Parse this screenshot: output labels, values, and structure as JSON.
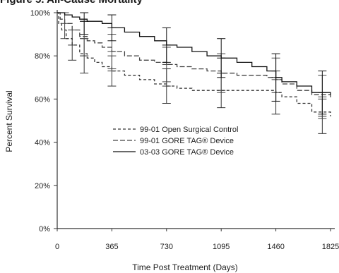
{
  "figure_title": "Figure 5. All-Cause Mortality",
  "chart_data": {
    "type": "line",
    "title": "",
    "xlabel": "Time Post Treatment (Days)",
    "ylabel": "Percent Survival",
    "xlim": [
      0,
      1825
    ],
    "ylim": [
      0,
      100
    ],
    "x_ticks": [
      0,
      365,
      730,
      1095,
      1460,
      1825
    ],
    "x_tick_labels": [
      "0",
      "365",
      "730",
      "1095",
      "1460",
      "1825"
    ],
    "y_ticks": [
      0,
      20,
      40,
      60,
      80,
      100
    ],
    "y_tick_labels": [
      "0%",
      "20%",
      "40%",
      "60%",
      "80%",
      "100%"
    ],
    "grid": false,
    "legend_position": "center",
    "series": [
      {
        "name": "99-01 Open Surgical Control",
        "style": "dashed",
        "color": "#333333",
        "x": [
          0,
          10,
          30,
          60,
          100,
          150,
          200,
          250,
          300,
          365,
          450,
          550,
          650,
          730,
          800,
          900,
          1000,
          1095,
          1200,
          1300,
          1400,
          1460,
          1500,
          1600,
          1700,
          1825
        ],
        "y": [
          100,
          95,
          92,
          88,
          85,
          81,
          79,
          77,
          75,
          73,
          71,
          69,
          67,
          66,
          65,
          64,
          64,
          64,
          64,
          64,
          64,
          63,
          61,
          58,
          54,
          52
        ],
        "error_bars": [
          {
            "x": 100,
            "y": 85,
            "low": 78,
            "high": 92
          },
          {
            "x": 180,
            "y": 80,
            "low": 72,
            "high": 88
          },
          {
            "x": 365,
            "y": 73,
            "low": 66,
            "high": 80
          },
          {
            "x": 730,
            "y": 66,
            "low": 58,
            "high": 74
          },
          {
            "x": 1095,
            "y": 64,
            "low": 56,
            "high": 72
          },
          {
            "x": 1460,
            "y": 63,
            "low": 53,
            "high": 73
          },
          {
            "x": 1770,
            "y": 52,
            "low": 44,
            "high": 60
          }
        ]
      },
      {
        "name": "99-01 GORE TAG® Device",
        "style": "dashed-long",
        "color": "#444444",
        "x": [
          0,
          20,
          50,
          100,
          150,
          200,
          250,
          300,
          365,
          450,
          550,
          650,
          730,
          800,
          900,
          1000,
          1095,
          1200,
          1300,
          1400,
          1460,
          1500,
          1600,
          1700,
          1825
        ],
        "y": [
          100,
          97,
          95,
          92,
          89,
          87,
          86,
          84,
          82,
          80,
          78,
          77,
          76,
          75,
          74,
          73,
          72,
          71,
          71,
          70,
          69,
          67,
          64,
          62,
          60
        ],
        "error_bars": [
          {
            "x": 50,
            "y": 95,
            "low": 88,
            "high": 100
          },
          {
            "x": 180,
            "y": 88,
            "low": 80,
            "high": 96
          },
          {
            "x": 365,
            "y": 82,
            "low": 74,
            "high": 90
          },
          {
            "x": 730,
            "y": 76,
            "low": 68,
            "high": 84
          },
          {
            "x": 1095,
            "y": 72,
            "low": 63,
            "high": 81
          },
          {
            "x": 1460,
            "y": 69,
            "low": 59,
            "high": 79
          },
          {
            "x": 1770,
            "y": 61,
            "low": 51,
            "high": 71
          }
        ]
      },
      {
        "name": "03-03 GORE TAG® Device",
        "style": "solid",
        "color": "#111111",
        "x": [
          0,
          50,
          100,
          150,
          200,
          250,
          300,
          365,
          450,
          550,
          650,
          730,
          800,
          900,
          1000,
          1095,
          1200,
          1300,
          1400,
          1460,
          1500,
          1600,
          1700,
          1825
        ],
        "y": [
          100,
          99,
          98,
          97,
          96,
          96,
          95,
          93,
          91,
          89,
          87,
          85,
          84,
          82,
          80,
          79,
          77,
          75,
          73,
          70,
          68,
          66,
          63,
          62
        ],
        "error_bars": [
          {
            "x": 180,
            "y": 96,
            "low": 90,
            "high": 100
          },
          {
            "x": 365,
            "y": 93,
            "low": 87,
            "high": 99
          },
          {
            "x": 730,
            "y": 85,
            "low": 77,
            "high": 93
          },
          {
            "x": 1095,
            "y": 79,
            "low": 70,
            "high": 88
          },
          {
            "x": 1460,
            "y": 70,
            "low": 59,
            "high": 81
          },
          {
            "x": 1770,
            "y": 63,
            "low": 53,
            "high": 73
          }
        ]
      }
    ]
  }
}
